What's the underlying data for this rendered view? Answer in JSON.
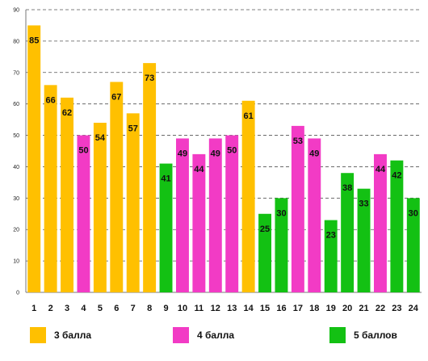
{
  "chart_data": {
    "type": "bar",
    "categories": [
      "1",
      "2",
      "3",
      "4",
      "5",
      "6",
      "7",
      "8",
      "9",
      "10",
      "11",
      "12",
      "13",
      "14",
      "15",
      "16",
      "17",
      "18",
      "19",
      "20",
      "21",
      "22",
      "23",
      "24"
    ],
    "values": [
      85,
      66,
      62,
      50,
      54,
      67,
      57,
      73,
      41,
      49,
      44,
      49,
      50,
      61,
      25,
      30,
      53,
      49,
      23,
      38,
      33,
      44,
      42,
      30
    ],
    "bar_groups": [
      "3",
      "3",
      "3",
      "4",
      "3",
      "3",
      "3",
      "3",
      "5",
      "4",
      "4",
      "4",
      "4",
      "3",
      "5",
      "5",
      "4",
      "4",
      "5",
      "5",
      "5",
      "4",
      "5",
      "5"
    ],
    "ylim": [
      0,
      90
    ],
    "yticks": [
      0,
      10,
      20,
      30,
      40,
      50,
      60,
      70,
      80,
      90
    ],
    "grid": true,
    "legend_placement": "bottom",
    "legend": [
      {
        "key": "3",
        "label": "3 балла",
        "color": "#FFC000"
      },
      {
        "key": "4",
        "label": "4 балла",
        "color": "#F23BC5"
      },
      {
        "key": "5",
        "label": "5 баллов",
        "color": "#13C113"
      }
    ]
  }
}
